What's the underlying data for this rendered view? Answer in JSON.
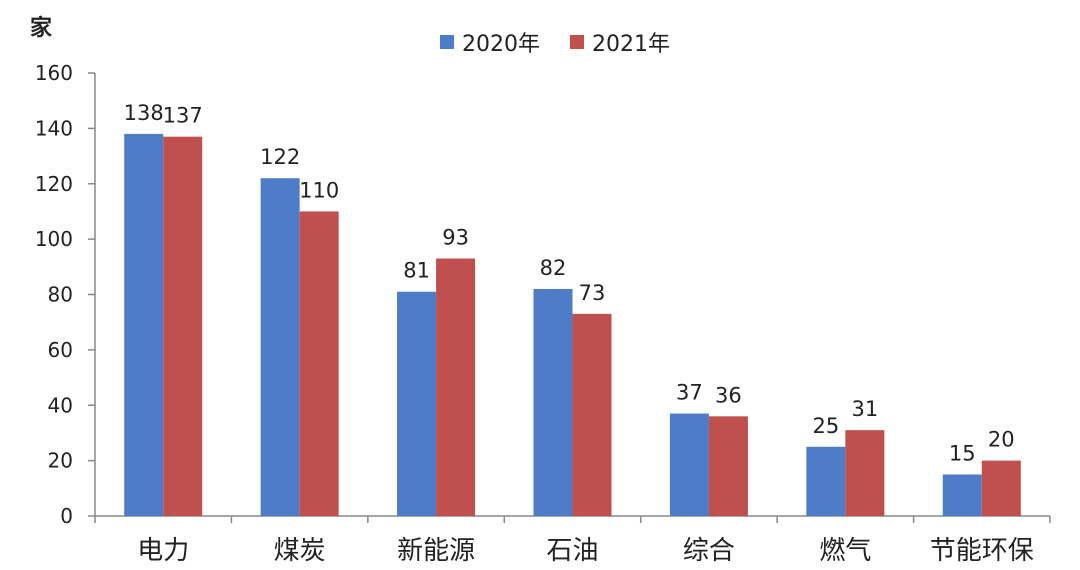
{
  "chart_data": {
    "type": "bar",
    "ylabel": "家",
    "ylim": [
      0,
      160
    ],
    "yticks": [
      0,
      20,
      40,
      60,
      80,
      100,
      120,
      140,
      160
    ],
    "categories": [
      "电力",
      "煤炭",
      "新能源",
      "石油",
      "综合",
      "燃气",
      "节能环保"
    ],
    "series": [
      {
        "name": "2020年",
        "color": "#4f7cc8",
        "values": [
          138,
          122,
          81,
          82,
          37,
          25,
          15
        ]
      },
      {
        "name": "2021年",
        "color": "#c0504d",
        "values": [
          137,
          110,
          93,
          73,
          36,
          31,
          20
        ]
      }
    ],
    "legend_position": "top-center",
    "grid": false
  }
}
